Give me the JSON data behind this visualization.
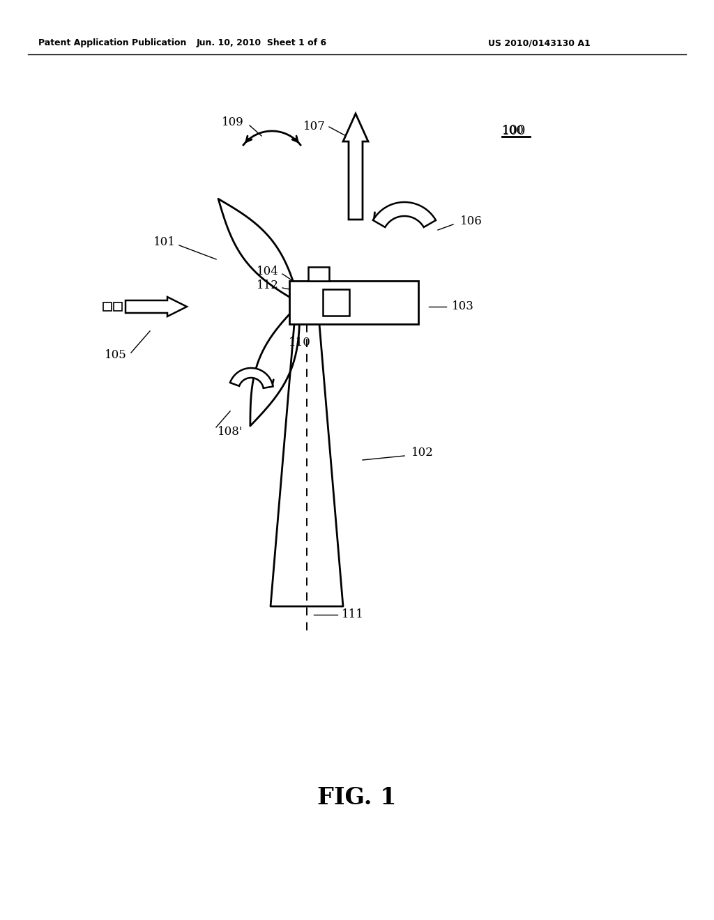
{
  "bg_color": "#ffffff",
  "header_left": "Patent Application Publication",
  "header_center": "Jun. 10, 2010  Sheet 1 of 6",
  "header_right": "US 2010/0143130 A1",
  "fig_label": "FIG. 1",
  "label_100": "100",
  "label_101": "101",
  "label_102": "102",
  "label_103": "103",
  "label_104": "104",
  "label_105": "105",
  "label_106": "106",
  "label_107": "107",
  "label_108": "108'",
  "label_109": "109",
  "label_110": "110",
  "label_111": "111",
  "label_112": "112"
}
